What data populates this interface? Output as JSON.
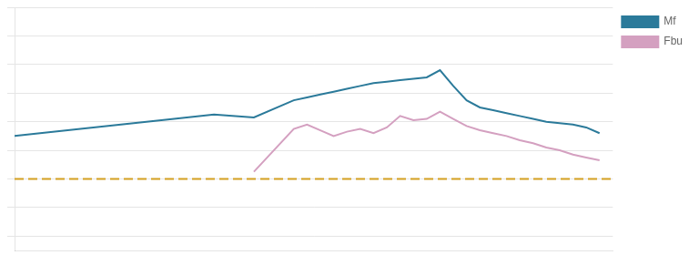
{
  "chart_data": {
    "type": "line",
    "x": [
      1975,
      1979,
      1983,
      1987,
      1990,
      1993,
      1996,
      1997,
      1998,
      1999,
      2000,
      2001,
      2002,
      2003,
      2004,
      2005,
      2006,
      2007,
      2008,
      2009,
      2010,
      2011,
      2012,
      2013,
      2014,
      2015,
      2016,
      2017,
      2018,
      2019
    ],
    "series": [
      {
        "name": "Mf",
        "color": "#2b7a9a",
        "values": [
          13.0,
          13.4,
          13.8,
          14.2,
          14.5,
          14.3,
          15.5,
          15.7,
          15.9,
          16.1,
          16.3,
          16.5,
          16.7,
          16.8,
          16.9,
          17.0,
          17.1,
          17.6,
          16.5,
          15.5,
          15.0,
          14.8,
          14.6,
          14.4,
          14.2,
          14.0,
          13.9,
          13.8,
          13.6,
          13.2
        ]
      },
      {
        "name": "Fbu",
        "color": "#d4a0c0",
        "values": [
          null,
          null,
          null,
          null,
          null,
          10.5,
          13.5,
          13.8,
          13.4,
          13.0,
          13.3,
          13.5,
          13.2,
          13.6,
          14.4,
          14.1,
          14.2,
          14.7,
          14.2,
          13.7,
          13.4,
          13.2,
          13.0,
          12.7,
          12.5,
          12.2,
          12.0,
          11.7,
          11.5,
          11.3
        ]
      }
    ],
    "reference_lines": [
      {
        "value": 10,
        "color": "#d4a020",
        "line_style": "dashed"
      }
    ],
    "xlim": [
      1975,
      2020
    ],
    "ylim": [
      5,
      22
    ],
    "yticks": [
      6,
      8,
      10,
      12,
      14,
      16,
      18,
      20,
      22
    ],
    "grid": true,
    "tick_labels": false,
    "legend": "right"
  }
}
